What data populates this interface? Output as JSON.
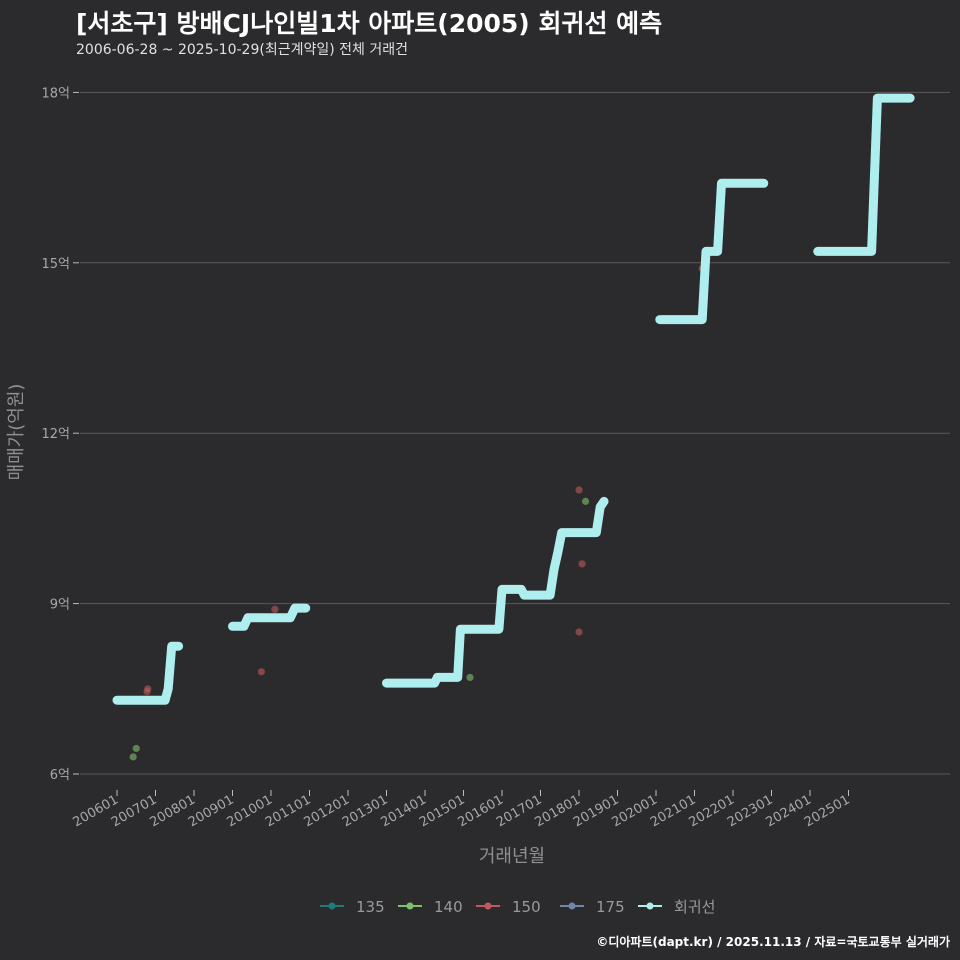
{
  "header": {
    "title": "[서초구] 방배CJ나인빌1차 아파트(2005) 회귀선 예측",
    "subtitle": "2006-06-28 ~ 2025-10-29(최근계약일) 전체 거래건"
  },
  "footer": {
    "credit": "©디아파트(dapt.kr) / 2025.11.13 / 자료=국토교통부 실거래가"
  },
  "colors": {
    "background": "#2b2b2d",
    "grid": "#5a5a5c",
    "regression": "#aeeeee",
    "s135": "#1f7a78",
    "s140": "#7fc06a",
    "s150": "#c05a5a",
    "s175": "#6f86a8"
  },
  "chart_data": {
    "type": "line",
    "title": "[서초구] 방배CJ나인빌1차 아파트(2005) 회귀선 예측",
    "xlabel": "거래년월",
    "ylabel": "매매가(억원)",
    "ylim": [
      5.7,
      18.5
    ],
    "xlim": [
      2005.7,
      2027.6
    ],
    "x_ticks": [
      {
        "value": 2006,
        "label": "200601"
      },
      {
        "value": 2007,
        "label": "200701"
      },
      {
        "value": 2008,
        "label": "200801"
      },
      {
        "value": 2009,
        "label": "200901"
      },
      {
        "value": 2010,
        "label": "201001"
      },
      {
        "value": 2011,
        "label": "201101"
      },
      {
        "value": 2012,
        "label": "201201"
      },
      {
        "value": 2013,
        "label": "201301"
      },
      {
        "value": 2014,
        "label": "201401"
      },
      {
        "value": 2015,
        "label": "201501"
      },
      {
        "value": 2016,
        "label": "201601"
      },
      {
        "value": 2017,
        "label": "201701"
      },
      {
        "value": 2018,
        "label": "201801"
      },
      {
        "value": 2019,
        "label": "201901"
      },
      {
        "value": 2020,
        "label": "202001"
      },
      {
        "value": 2021,
        "label": "202101"
      },
      {
        "value": 2022,
        "label": "202201"
      },
      {
        "value": 2023,
        "label": "202301"
      },
      {
        "value": 2024,
        "label": "202401"
      },
      {
        "value": 2025,
        "label": "202501"
      }
    ],
    "y_ticks": [
      {
        "value": 6,
        "label": "6억"
      },
      {
        "value": 9,
        "label": "9억"
      },
      {
        "value": 12,
        "label": "12억"
      },
      {
        "value": 15,
        "label": "15억"
      },
      {
        "value": 18,
        "label": "18억"
      }
    ],
    "legend": [
      {
        "name": "135",
        "color": "#1f7a78"
      },
      {
        "name": "140",
        "color": "#7fc06a"
      },
      {
        "name": "150",
        "color": "#c05a5a"
      },
      {
        "name": "175",
        "color": "#6f86a8"
      },
      {
        "name": "회귀선",
        "color": "#aeeeee"
      }
    ],
    "scatter": [
      {
        "series": "140",
        "x": 2006.42,
        "y": 6.3
      },
      {
        "series": "140",
        "x": 2006.5,
        "y": 6.45
      },
      {
        "series": "150",
        "x": 2006.78,
        "y": 7.45
      },
      {
        "series": "150",
        "x": 2006.8,
        "y": 7.5
      },
      {
        "series": "150",
        "x": 2009.75,
        "y": 7.8
      },
      {
        "series": "150",
        "x": 2010.1,
        "y": 8.9
      },
      {
        "series": "140",
        "x": 2015.17,
        "y": 7.7
      },
      {
        "series": "150",
        "x": 2018.0,
        "y": 11.0
      },
      {
        "series": "140",
        "x": 2018.17,
        "y": 10.8
      },
      {
        "series": "150",
        "x": 2018.08,
        "y": 9.7
      },
      {
        "series": "150",
        "x": 2018.0,
        "y": 8.5
      },
      {
        "series": "150",
        "x": 2021.2,
        "y": 14.9
      }
    ],
    "regression": [
      [
        [
          2006.0,
          7.3
        ],
        [
          2007.25,
          7.3
        ],
        [
          2007.33,
          7.5
        ],
        [
          2007.42,
          8.25
        ],
        [
          2007.6,
          8.25
        ]
      ],
      [
        [
          2009.0,
          8.6
        ],
        [
          2009.3,
          8.6
        ],
        [
          2009.4,
          8.75
        ],
        [
          2010.5,
          8.75
        ],
        [
          2010.62,
          8.92
        ],
        [
          2010.9,
          8.92
        ]
      ],
      [
        [
          2013.0,
          7.6
        ],
        [
          2014.25,
          7.6
        ],
        [
          2014.32,
          7.7
        ],
        [
          2014.85,
          7.7
        ],
        [
          2014.92,
          8.55
        ],
        [
          2015.92,
          8.55
        ],
        [
          2016.0,
          9.25
        ],
        [
          2016.5,
          9.25
        ],
        [
          2016.58,
          9.15
        ],
        [
          2017.25,
          9.15
        ],
        [
          2017.35,
          9.6
        ],
        [
          2017.45,
          9.9
        ],
        [
          2017.55,
          10.25
        ],
        [
          2018.3,
          10.25
        ],
        [
          2018.45,
          10.25
        ],
        [
          2018.55,
          10.7
        ],
        [
          2018.65,
          10.8
        ]
      ],
      [
        [
          2020.1,
          14.0
        ],
        [
          2021.2,
          14.0
        ],
        [
          2021.3,
          15.2
        ],
        [
          2021.6,
          15.2
        ],
        [
          2021.7,
          16.4
        ],
        [
          2022.8,
          16.4
        ]
      ],
      [
        [
          2024.2,
          15.2
        ],
        [
          2025.6,
          15.2
        ],
        [
          2025.75,
          17.9
        ],
        [
          2026.6,
          17.9
        ]
      ]
    ]
  }
}
